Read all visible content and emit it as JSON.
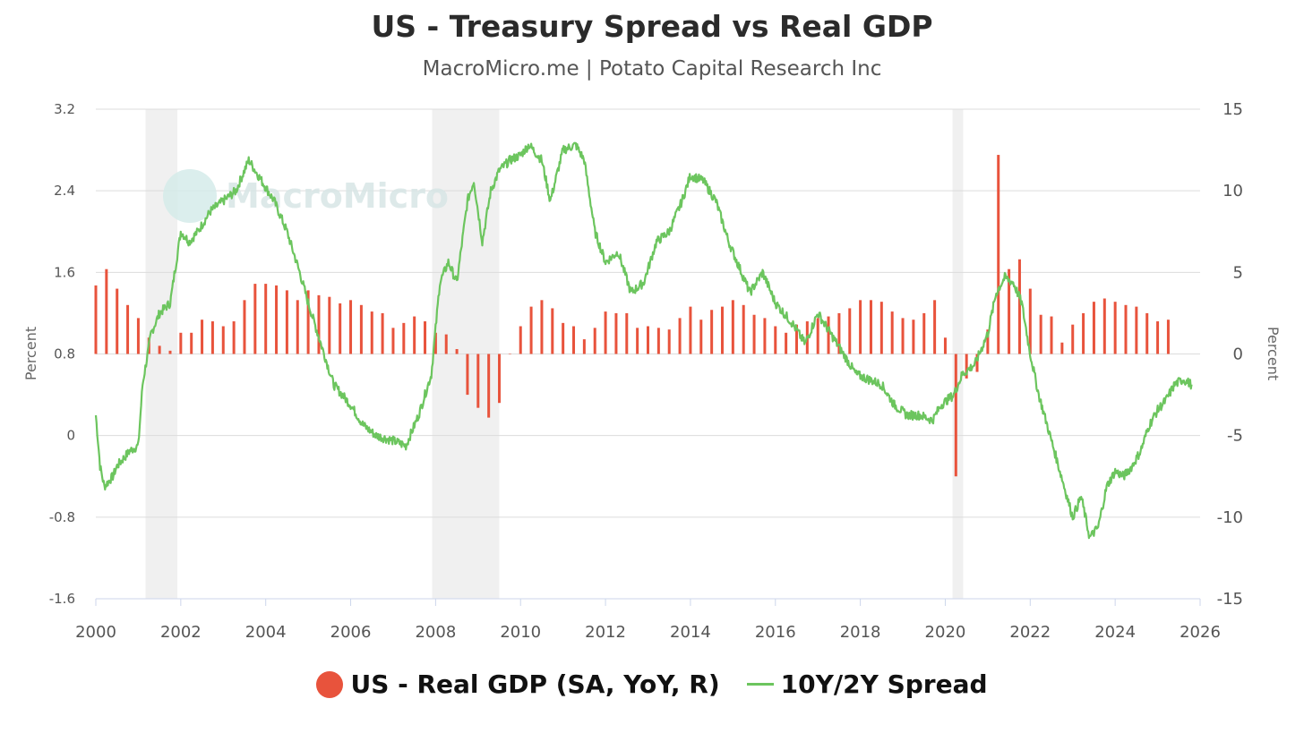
{
  "chart_data": {
    "type": "bar+line",
    "title": "US - Treasury Spread vs Real GDP",
    "subtitle": "MacroMicro.me | Potato Capital Research Inc",
    "watermark": "MacroMicro",
    "x_range": [
      2000,
      2026
    ],
    "x_ticks": [
      "2000",
      "2002",
      "2004",
      "2006",
      "2008",
      "2010",
      "2012",
      "2014",
      "2016",
      "2018",
      "2020",
      "2022",
      "2024",
      "2026"
    ],
    "left_axis": {
      "title": "Percent",
      "range": [
        -1.6,
        3.2
      ],
      "ticks": [
        "3.2",
        "2.4",
        "1.6",
        "0.8",
        "0",
        "-0.8",
        "-1.6"
      ]
    },
    "right_axis": {
      "title": "Percent",
      "range": [
        -15,
        15
      ],
      "ticks": [
        "15",
        "10",
        "5",
        "0",
        "-5",
        "-10",
        "-15"
      ]
    },
    "recessions": [
      [
        2001.17,
        2001.92
      ],
      [
        2007.92,
        2009.5
      ],
      [
        2020.17,
        2020.42
      ]
    ],
    "series": [
      {
        "name": "US - Real GDP (SA, YoY, R)",
        "type": "bar",
        "axis": "right",
        "color": "#e8533c",
        "x": [
          2000.0,
          2000.25,
          2000.5,
          2000.75,
          2001.0,
          2001.25,
          2001.5,
          2001.75,
          2002.0,
          2002.25,
          2002.5,
          2002.75,
          2003.0,
          2003.25,
          2003.5,
          2003.75,
          2004.0,
          2004.25,
          2004.5,
          2004.75,
          2005.0,
          2005.25,
          2005.5,
          2005.75,
          2006.0,
          2006.25,
          2006.5,
          2006.75,
          2007.0,
          2007.25,
          2007.5,
          2007.75,
          2008.0,
          2008.25,
          2008.5,
          2008.75,
          2009.0,
          2009.25,
          2009.5,
          2009.75,
          2010.0,
          2010.25,
          2010.5,
          2010.75,
          2011.0,
          2011.25,
          2011.5,
          2011.75,
          2012.0,
          2012.25,
          2012.5,
          2012.75,
          2013.0,
          2013.25,
          2013.5,
          2013.75,
          2014.0,
          2014.25,
          2014.5,
          2014.75,
          2015.0,
          2015.25,
          2015.5,
          2015.75,
          2016.0,
          2016.25,
          2016.5,
          2016.75,
          2017.0,
          2017.25,
          2017.5,
          2017.75,
          2018.0,
          2018.25,
          2018.5,
          2018.75,
          2019.0,
          2019.25,
          2019.5,
          2019.75,
          2020.0,
          2020.25,
          2020.5,
          2020.75,
          2021.0,
          2021.25,
          2021.5,
          2021.75,
          2022.0,
          2022.25,
          2022.5,
          2022.75,
          2023.0,
          2023.25,
          2023.5,
          2023.75,
          2024.0,
          2024.25,
          2024.5,
          2024.75,
          2025.0,
          2025.25
        ],
        "values": [
          4.2,
          5.2,
          4.0,
          3.0,
          2.2,
          1.0,
          0.5,
          0.2,
          1.3,
          1.3,
          2.1,
          2.0,
          1.7,
          2.0,
          3.3,
          4.3,
          4.3,
          4.2,
          3.9,
          3.3,
          3.9,
          3.6,
          3.5,
          3.1,
          3.3,
          3.0,
          2.6,
          2.5,
          1.6,
          1.9,
          2.3,
          2.0,
          1.3,
          1.2,
          0.3,
          -2.5,
          -3.3,
          -3.9,
          -3.0,
          0.0,
          1.7,
          2.9,
          3.3,
          2.8,
          1.9,
          1.7,
          0.9,
          1.6,
          2.6,
          2.5,
          2.5,
          1.6,
          1.7,
          1.6,
          1.5,
          2.2,
          2.9,
          2.1,
          2.7,
          2.9,
          3.3,
          3.0,
          2.4,
          2.2,
          1.7,
          1.3,
          1.8,
          2.0,
          2.2,
          2.3,
          2.5,
          2.8,
          3.3,
          3.3,
          3.2,
          2.6,
          2.2,
          2.1,
          2.5,
          3.3,
          1.0,
          -7.5,
          -1.5,
          -1.1,
          1.5,
          12.2,
          5.2,
          5.8,
          4.0,
          2.4,
          2.3,
          0.7,
          1.8,
          2.5,
          3.2,
          3.4,
          3.2,
          3.0,
          2.9,
          2.5,
          2.0,
          2.1
        ]
      },
      {
        "name": "10Y/2Y Spread",
        "type": "line",
        "axis": "left",
        "color": "#6cc55e",
        "x": [
          2000.0,
          2000.1,
          2000.2,
          2000.4,
          2000.5,
          2000.8,
          2001.0,
          2001.1,
          2001.3,
          2001.5,
          2001.75,
          2002.0,
          2002.2,
          2002.4,
          2002.7,
          2003.0,
          2003.3,
          2003.6,
          2003.9,
          2004.2,
          2004.5,
          2004.8,
          2005.0,
          2005.3,
          2005.6,
          2006.0,
          2006.3,
          2006.6,
          2007.0,
          2007.3,
          2007.6,
          2007.9,
          2008.1,
          2008.3,
          2008.5,
          2008.75,
          2008.9,
          2009.1,
          2009.3,
          2009.5,
          2009.75,
          2010.0,
          2010.2,
          2010.5,
          2010.7,
          2011.0,
          2011.3,
          2011.5,
          2011.75,
          2012.0,
          2012.3,
          2012.6,
          2012.9,
          2013.2,
          2013.5,
          2013.8,
          2014.0,
          2014.3,
          2014.6,
          2014.9,
          2015.1,
          2015.4,
          2015.7,
          2016.0,
          2016.4,
          2016.7,
          2017.0,
          2017.3,
          2017.6,
          2017.9,
          2018.2,
          2018.5,
          2018.8,
          2019.1,
          2019.4,
          2019.7,
          2019.9,
          2020.2,
          2020.4,
          2020.7,
          2021.0,
          2021.2,
          2021.4,
          2021.6,
          2021.8,
          2022.0,
          2022.2,
          2022.4,
          2022.6,
          2022.8,
          2023.0,
          2023.2,
          2023.4,
          2023.6,
          2023.8,
          2024.0,
          2024.2,
          2024.4,
          2024.6,
          2024.8,
          2025.0,
          2025.2,
          2025.4,
          2025.6,
          2025.8
        ],
        "values": [
          0.2,
          -0.3,
          -0.5,
          -0.4,
          -0.3,
          -0.15,
          -0.1,
          0.5,
          1.0,
          1.2,
          1.3,
          2.0,
          1.9,
          2.0,
          2.2,
          2.3,
          2.4,
          2.7,
          2.5,
          2.3,
          2.0,
          1.6,
          1.3,
          0.9,
          0.5,
          0.3,
          0.1,
          0.0,
          -0.05,
          -0.1,
          0.2,
          0.6,
          1.5,
          1.7,
          1.5,
          2.3,
          2.5,
          1.9,
          2.4,
          2.6,
          2.7,
          2.75,
          2.85,
          2.7,
          2.3,
          2.8,
          2.85,
          2.7,
          2.0,
          1.7,
          1.8,
          1.4,
          1.5,
          1.9,
          2.0,
          2.3,
          2.55,
          2.5,
          2.3,
          1.9,
          1.7,
          1.4,
          1.6,
          1.3,
          1.1,
          0.9,
          1.2,
          1.0,
          0.8,
          0.6,
          0.55,
          0.5,
          0.3,
          0.2,
          0.2,
          0.15,
          0.3,
          0.4,
          0.6,
          0.7,
          1.0,
          1.4,
          1.55,
          1.5,
          1.3,
          0.8,
          0.4,
          0.1,
          -0.2,
          -0.5,
          -0.8,
          -0.6,
          -1.0,
          -0.9,
          -0.5,
          -0.35,
          -0.4,
          -0.3,
          -0.15,
          0.1,
          0.25,
          0.35,
          0.5,
          0.55,
          0.5
        ]
      }
    ]
  },
  "legend": {
    "gdp_label": "US - Real GDP (SA, YoY, R)",
    "spread_label": "10Y/2Y Spread"
  }
}
